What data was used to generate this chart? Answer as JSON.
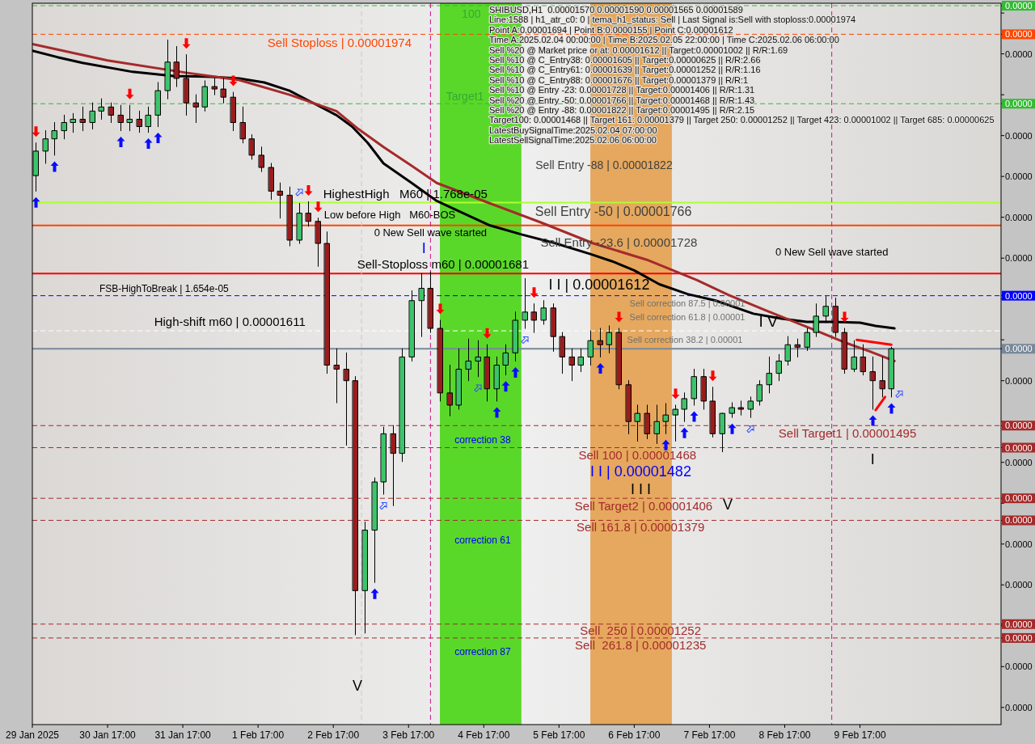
{
  "chart_data": {
    "type": "candlestick",
    "title": "SHIBUSD,H1  0.00001570 0.00001590 0.00001565 0.00001589",
    "x": [
      "2025-01-29T18:00",
      "2025-01-29T21:00",
      "2025-01-30T00:00",
      "2025-01-30T03:00",
      "2025-01-30T06:00",
      "2025-01-30T09:00",
      "2025-01-30T12:00",
      "2025-01-30T15:00",
      "2025-01-30T18:00",
      "2025-01-30T21:00",
      "2025-01-31T00:00",
      "2025-01-31T03:00",
      "2025-01-31T06:00",
      "2025-01-31T09:00",
      "2025-01-31T12:00",
      "2025-01-31T15:00",
      "2025-01-31T18:00",
      "2025-01-31T21:00",
      "2025-02-01T00:00",
      "2025-02-01T03:00",
      "2025-02-01T06:00",
      "2025-02-01T09:00",
      "2025-02-01T12:00",
      "2025-02-01T15:00",
      "2025-02-01T18:00",
      "2025-02-01T21:00",
      "2025-02-02T00:00",
      "2025-02-02T03:00",
      "2025-02-02T06:00",
      "2025-02-02T09:00",
      "2025-02-02T12:00",
      "2025-02-02T15:00",
      "2025-02-02T18:00",
      "2025-02-02T21:00",
      "2025-02-03T00:00",
      "2025-02-03T03:00",
      "2025-02-03T06:00",
      "2025-02-03T09:00",
      "2025-02-03T12:00",
      "2025-02-03T15:00",
      "2025-02-03T18:00",
      "2025-02-03T21:00",
      "2025-02-04T00:00",
      "2025-02-04T03:00",
      "2025-02-04T06:00",
      "2025-02-04T09:00",
      "2025-02-04T12:00",
      "2025-02-04T15:00",
      "2025-02-04T18:00",
      "2025-02-04T21:00",
      "2025-02-05T00:00",
      "2025-02-05T03:00",
      "2025-02-05T06:00",
      "2025-02-05T09:00",
      "2025-02-05T12:00",
      "2025-02-05T15:00",
      "2025-02-05T18:00",
      "2025-02-05T21:00",
      "2025-02-06T00:00",
      "2025-02-06T03:00",
      "2025-02-06T06:00",
      "2025-02-06T09:00",
      "2025-02-06T12:00",
      "2025-02-06T15:00",
      "2025-02-06T18:00",
      "2025-02-06T21:00",
      "2025-02-07T00:00",
      "2025-02-07T03:00",
      "2025-02-07T06:00",
      "2025-02-07T09:00",
      "2025-02-07T12:00",
      "2025-02-07T15:00",
      "2025-02-07T18:00",
      "2025-02-07T21:00",
      "2025-02-08T00:00",
      "2025-02-08T03:00",
      "2025-02-08T06:00",
      "2025-02-08T09:00",
      "2025-02-08T12:00",
      "2025-02-08T15:00",
      "2025-02-08T18:00",
      "2025-02-08T21:00",
      "2025-02-09T00:00",
      "2025-02-09T03:00",
      "2025-02-09T06:00",
      "2025-02-09T09:00",
      "2025-02-09T12:00",
      "2025-02-09T15:00",
      "2025-02-09T18:00",
      "2025-02-09T21:00",
      "2025-02-10T00:00",
      "2025-02-10T03:00"
    ],
    "ohlc": [
      [
        1.801e-05,
        1.841e-05,
        1.782e-05,
        1.831e-05
      ],
      [
        1.831e-05,
        1.856e-05,
        1.816e-05,
        1.846e-05
      ],
      [
        1.846e-05,
        1.866e-05,
        1.826e-05,
        1.856e-05
      ],
      [
        1.856e-05,
        1.875e-05,
        1.846e-05,
        1.866e-05
      ],
      [
        1.866e-05,
        1.877e-05,
        1.854e-05,
        1.87e-05
      ],
      [
        1.87e-05,
        1.885e-05,
        1.856e-05,
        1.866e-05
      ],
      [
        1.866e-05,
        1.89e-05,
        1.858e-05,
        1.88e-05
      ],
      [
        1.88e-05,
        1.895e-05,
        1.87e-05,
        1.885e-05
      ],
      [
        1.885e-05,
        1.89e-05,
        1.866e-05,
        1.875e-05
      ],
      [
        1.875e-05,
        1.887e-05,
        1.856e-05,
        1.866e-05
      ],
      [
        1.866e-05,
        1.887e-05,
        1.856e-05,
        1.87e-05
      ],
      [
        1.87e-05,
        1.88e-05,
        1.854e-05,
        1.861e-05
      ],
      [
        1.861e-05,
        1.885e-05,
        1.854e-05,
        1.875e-05
      ],
      [
        1.875e-05,
        1.915e-05,
        1.861e-05,
        1.905e-05
      ],
      [
        1.905e-05,
        1.967e-05,
        1.895e-05,
        1.94e-05
      ],
      [
        1.94e-05,
        1.959e-05,
        1.91e-05,
        1.92e-05
      ],
      [
        1.92e-05,
        1.949e-05,
        1.875e-05,
        1.89e-05
      ],
      [
        1.89e-05,
        1.9e-05,
        1.866e-05,
        1.885e-05
      ],
      [
        1.885e-05,
        1.917e-05,
        1.88e-05,
        1.91e-05
      ],
      [
        1.91e-05,
        1.92e-05,
        1.9e-05,
        1.907e-05
      ],
      [
        1.907e-05,
        1.92e-05,
        1.89e-05,
        1.897e-05
      ],
      [
        1.897e-05,
        1.903e-05,
        1.856e-05,
        1.866e-05
      ],
      [
        1.866e-05,
        1.885e-05,
        1.841e-05,
        1.846e-05
      ],
      [
        1.846e-05,
        1.851e-05,
        1.821e-05,
        1.826e-05
      ],
      [
        1.826e-05,
        1.836e-05,
        1.806e-05,
        1.811e-05
      ],
      [
        1.811e-05,
        1.816e-05,
        1.772e-05,
        1.782e-05
      ],
      [
        1.782e-05,
        1.792e-05,
        1.749e-05,
        1.777e-05
      ],
      [
        1.777e-05,
        1.787e-05,
        1.715e-05,
        1.722e-05
      ],
      [
        1.722e-05,
        1.767e-05,
        1.718e-05,
        1.755e-05
      ],
      [
        1.755e-05,
        1.769e-05,
        1.739e-05,
        1.745e-05
      ],
      [
        1.745e-05,
        1.749e-05,
        1.69e-05,
        1.718e-05
      ],
      [
        1.718e-05,
        1.732e-05,
        1.559e-05,
        1.569e-05
      ],
      [
        1.569e-05,
        1.589e-05,
        1.523e-05,
        1.564e-05
      ],
      [
        1.564e-05,
        1.584e-05,
        1.471e-05,
        1.55e-05
      ],
      [
        1.55e-05,
        1.555e-05,
        1.239e-05,
        1.293e-05
      ],
      [
        1.293e-05,
        1.377e-05,
        1.241e-05,
        1.367e-05
      ],
      [
        1.367e-05,
        1.431e-05,
        1.303e-05,
        1.426e-05
      ],
      [
        1.426e-05,
        1.493e-05,
        1.411e-05,
        1.485e-05
      ],
      [
        1.485e-05,
        1.495e-05,
        1.397e-05,
        1.461e-05
      ],
      [
        1.461e-05,
        1.589e-05,
        1.451e-05,
        1.579e-05
      ],
      [
        1.579e-05,
        1.66e-05,
        1.574e-05,
        1.648e-05
      ],
      [
        1.648e-05,
        1.681e-05,
        1.604e-05,
        1.663e-05
      ],
      [
        1.663e-05,
        1.683e-05,
        1.609e-05,
        1.614e-05
      ],
      [
        1.614e-05,
        1.624e-05,
        1.525e-05,
        1.535e-05
      ],
      [
        1.535e-05,
        1.569e-05,
        1.507e-05,
        1.52e-05
      ],
      [
        1.52e-05,
        1.589e-05,
        1.515e-05,
        1.564e-05
      ],
      [
        1.564e-05,
        1.601e-05,
        1.55e-05,
        1.574e-05
      ],
      [
        1.574e-05,
        1.599e-05,
        1.555e-05,
        1.579e-05
      ],
      [
        1.579e-05,
        1.594e-05,
        1.525e-05,
        1.54e-05
      ],
      [
        1.54e-05,
        1.579e-05,
        1.525e-05,
        1.569e-05
      ],
      [
        1.569e-05,
        1.594e-05,
        1.557e-05,
        1.584e-05
      ],
      [
        1.584e-05,
        1.634e-05,
        1.574e-05,
        1.624e-05
      ],
      [
        1.624e-05,
        1.675e-05,
        1.614e-05,
        1.634e-05
      ],
      [
        1.634e-05,
        1.644e-05,
        1.609e-05,
        1.624e-05
      ],
      [
        1.624e-05,
        1.648e-05,
        1.619e-05,
        1.639e-05
      ],
      [
        1.639e-05,
        1.644e-05,
        1.586e-05,
        1.604e-05
      ],
      [
        1.604e-05,
        1.609e-05,
        1.559e-05,
        1.579e-05
      ],
      [
        1.579e-05,
        1.589e-05,
        1.55e-05,
        1.569e-05
      ],
      [
        1.569e-05,
        1.589e-05,
        1.561e-05,
        1.579e-05
      ],
      [
        1.579e-05,
        1.611e-05,
        1.569e-05,
        1.599e-05
      ],
      [
        1.599e-05,
        1.614e-05,
        1.579e-05,
        1.594e-05
      ],
      [
        1.594e-05,
        1.617e-05,
        1.584e-05,
        1.609e-05
      ],
      [
        1.609e-05,
        1.614e-05,
        1.54e-05,
        1.545e-05
      ],
      [
        1.545e-05,
        1.55e-05,
        1.485e-05,
        1.5e-05
      ],
      [
        1.5e-05,
        1.52e-05,
        1.476e-05,
        1.51e-05
      ],
      [
        1.51e-05,
        1.52e-05,
        1.479e-05,
        1.485e-05
      ],
      [
        1.485e-05,
        1.52e-05,
        1.473e-05,
        1.5e-05
      ],
      [
        1.5e-05,
        1.522e-05,
        1.485e-05,
        1.508e-05
      ],
      [
        1.508e-05,
        1.52e-05,
        1.476e-05,
        1.515e-05
      ],
      [
        1.515e-05,
        1.535e-05,
        1.5e-05,
        1.528e-05
      ],
      [
        1.528e-05,
        1.564e-05,
        1.52e-05,
        1.555e-05
      ],
      [
        1.555e-05,
        1.564e-05,
        1.515e-05,
        1.525e-05
      ],
      [
        1.525e-05,
        1.542e-05,
        1.481e-05,
        1.485e-05
      ],
      [
        1.485e-05,
        1.51e-05,
        1.463e-05,
        1.51e-05
      ],
      [
        1.51e-05,
        1.523e-05,
        1.505e-05,
        1.517e-05
      ],
      [
        1.517e-05,
        1.525e-05,
        1.508e-05,
        1.515e-05
      ],
      [
        1.515e-05,
        1.53e-05,
        1.505e-05,
        1.525e-05
      ],
      [
        1.525e-05,
        1.55e-05,
        1.52e-05,
        1.545e-05
      ],
      [
        1.545e-05,
        1.579e-05,
        1.535e-05,
        1.559e-05
      ],
      [
        1.559e-05,
        1.582e-05,
        1.55e-05,
        1.574e-05
      ],
      [
        1.574e-05,
        1.604e-05,
        1.569e-05,
        1.594e-05
      ],
      [
        1.594e-05,
        1.601e-05,
        1.579e-05,
        1.591e-05
      ],
      [
        1.591e-05,
        1.614e-05,
        1.587e-05,
        1.609e-05
      ],
      [
        1.609e-05,
        1.644e-05,
        1.604e-05,
        1.629e-05
      ],
      [
        1.629e-05,
        1.653e-05,
        1.621e-05,
        1.641e-05
      ],
      [
        1.641e-05,
        1.651e-05,
        1.604e-05,
        1.609e-05
      ],
      [
        1.609e-05,
        1.614e-05,
        1.559e-05,
        1.564e-05
      ],
      [
        1.564e-05,
        1.599e-05,
        1.561e-05,
        1.579e-05
      ],
      [
        1.579e-05,
        1.594e-05,
        1.557e-05,
        1.561e-05
      ],
      [
        1.561e-05,
        1.579e-05,
        1.515e-05,
        1.55e-05
      ],
      [
        1.55e-05,
        1.579e-05,
        1.53e-05,
        1.54e-05
      ],
      [
        1.54e-05,
        1.591e-05,
        1.53e-05,
        1.589e-05
      ]
    ],
    "series": [
      {
        "type": "line",
        "color": "#000000",
        "x": [
          "2025-01-29T17:00",
          "2025-01-30T01:00",
          "2025-01-30T09:00",
          "2025-01-31T01:00",
          "2025-01-31T14:00",
          "2025-02-01T02:00",
          "2025-02-01T11:00",
          "2025-02-01T19:00",
          "2025-02-02T03:00",
          "2025-02-02T12:00",
          "2025-02-02T18:00",
          "2025-02-02T23:00",
          "2025-02-03T04:00",
          "2025-02-03T09:00",
          "2025-02-03T18:00",
          "2025-02-04T02:00",
          "2025-02-04T11:00",
          "2025-02-04T19:00",
          "2025-02-05T05:00",
          "2025-02-05T16:00",
          "2025-02-06T03:00",
          "2025-02-06T10:00",
          "2025-02-06T17:00",
          "2025-02-07T01:00",
          "2025-02-07T10:00",
          "2025-02-07T19:00",
          "2025-02-08T07:00",
          "2025-02-08T16:00",
          "2025-02-09T00:00",
          "2025-02-09T08:00",
          "2025-02-09T17:00",
          "2025-02-09T22:00",
          "2025-02-10T04:00"
        ],
        "values": [
          1.954e-05,
          1.946e-05,
          1.939e-05,
          1.928e-05,
          1.923e-05,
          1.922e-05,
          1.92e-05,
          1.915e-05,
          1.905e-05,
          1.887e-05,
          1.875e-05,
          1.861e-05,
          1.841e-05,
          1.816e-05,
          1.792e-05,
          1.77e-05,
          1.754e-05,
          1.74e-05,
          1.729e-05,
          1.718e-05,
          1.705e-05,
          1.696e-05,
          1.685e-05,
          1.668e-05,
          1.656e-05,
          1.648e-05,
          1.632e-05,
          1.626e-05,
          1.622e-05,
          1.622e-05,
          1.621e-05,
          1.617e-05,
          1.614e-05
        ]
      },
      {
        "type": "line",
        "color": "#a52a2a",
        "x": [
          "2025-01-29T17:00",
          "2025-01-30T17:00",
          "2025-01-31T18:00",
          "2025-02-01T11:00",
          "2025-02-02T03:00",
          "2025-02-02T18:00",
          "2025-02-03T01:00",
          "2025-02-03T09:00",
          "2025-02-03T18:00",
          "2025-02-04T02:00",
          "2025-02-04T19:00",
          "2025-02-05T11:00",
          "2025-02-06T04:00",
          "2025-02-06T21:00",
          "2025-02-07T13:00",
          "2025-02-07T23:00",
          "2025-02-08T11:00",
          "2025-02-09T00:00",
          "2025-02-09T12:00",
          "2025-02-09T20:00",
          "2025-02-10T04:00"
        ],
        "values": [
          1.962e-05,
          1.942e-05,
          1.927e-05,
          1.918e-05,
          1.9e-05,
          1.88e-05,
          1.858e-05,
          1.836e-05,
          1.813e-05,
          1.792e-05,
          1.767e-05,
          1.744e-05,
          1.718e-05,
          1.698e-05,
          1.673e-05,
          1.655e-05,
          1.636e-05,
          1.616e-05,
          1.597e-05,
          1.586e-05,
          1.574e-05
        ]
      },
      {
        "type": "line",
        "color": "#ff0000",
        "x": [
          "2025-02-09T16:00",
          "2025-02-10T03:00"
        ],
        "values": [
          1.6e-05,
          1.594e-05
        ]
      },
      {
        "type": "line",
        "color": "#ff0000",
        "x": [
          "2025-02-09T22:00",
          "2025-02-10T01:00"
        ],
        "values": [
          1.514e-05,
          1.53e-05
        ]
      }
    ],
    "xlim": [
      "2025-01-29T17:00",
      "2025-02-11T14:00"
    ],
    "xticks": [
      {
        "value": "2025-01-29T17:00",
        "label": "29 Jan 2025"
      },
      {
        "value": "2025-01-30T17:00",
        "label": "30 Jan 17:00"
      },
      {
        "value": "2025-01-31T17:00",
        "label": "31 Jan 17:00"
      },
      {
        "value": "2025-02-01T17:00",
        "label": "1 Feb 17:00"
      },
      {
        "value": "2025-02-02T17:00",
        "label": "2 Feb 17:00"
      },
      {
        "value": "2025-02-03T17:00",
        "label": "3 Feb 17:00"
      },
      {
        "value": "2025-02-04T17:00",
        "label": "4 Feb 17:00"
      },
      {
        "value": "2025-02-05T17:00",
        "label": "5 Feb 17:00"
      },
      {
        "value": "2025-02-06T17:00",
        "label": "6 Feb 17:00"
      },
      {
        "value": "2025-02-07T17:00",
        "label": "7 Feb 17:00"
      },
      {
        "value": "2025-02-08T17:00",
        "label": "8 Feb 17:00"
      },
      {
        "value": "2025-02-09T17:00",
        "label": "9 Feb 17:00"
      }
    ],
    "ylim": [
      1.129e-05,
      2.012e-05
    ],
    "yticks": [
      {
        "value": 1.15e-05,
        "label": "0.0000"
      },
      {
        "value": 1.2e-05,
        "label": "0.0000"
      },
      {
        "value": 1.25e-05,
        "label": null
      },
      {
        "value": 1.3e-05,
        "label": "0.0000"
      },
      {
        "value": 1.35e-05,
        "label": "0.0000"
      },
      {
        "value": 1.4e-05,
        "label": null
      },
      {
        "value": 1.45e-05,
        "label": "0.0000"
      },
      {
        "value": 1.5e-05,
        "label": null
      },
      {
        "value": 1.55e-05,
        "label": "0.0000"
      },
      {
        "value": 1.6e-05,
        "label": null
      },
      {
        "value": 1.65e-05,
        "label": null
      },
      {
        "value": 1.7e-05,
        "label": "0.0000"
      },
      {
        "value": 1.75e-05,
        "label": "0.0000"
      },
      {
        "value": 1.8e-05,
        "label": "0.0000"
      },
      {
        "value": 1.85e-05,
        "label": "0.0000"
      },
      {
        "value": 1.9e-05,
        "label": null
      },
      {
        "value": 1.95e-05,
        "label": "0.0000"
      },
      {
        "value": 2e-05,
        "label": null
      },
      {
        "value": 2.009e-05,
        "label": "0.0000"
      },
      {
        "value": 1.974e-05,
        "label": "0.0000"
      },
      {
        "value": 1.889e-05,
        "label": "0.0000"
      },
      {
        "value": 1.654e-05,
        "label": "0.0000"
      },
      {
        "value": 1.589e-05,
        "label": "0.0000"
      },
      {
        "value": 1.495e-05,
        "label": "0.0000"
      },
      {
        "value": 1.468e-05,
        "label": "0.0000"
      },
      {
        "value": 1.406e-05,
        "label": "0.0000"
      },
      {
        "value": 1.379e-05,
        "label": "0.0000"
      },
      {
        "value": 1.252e-05,
        "label": "0.0000"
      },
      {
        "value": 1.235e-05,
        "label": "0.0000"
      }
    ],
    "bands": [
      {
        "axis": "x",
        "from": "2025-02-04T03:00",
        "to": "2025-02-05T05:00",
        "color": "#5ad82a"
      },
      {
        "axis": "x",
        "from": "2025-02-06T03:00",
        "to": "2025-02-07T05:00",
        "color": "#e5a85e"
      }
    ],
    "ref_lines": [
      {
        "axis": "y",
        "value": 2.009e-05,
        "color": "#33bb33",
        "line_style": "dashed"
      },
      {
        "axis": "y",
        "value": 1.974e-05,
        "color": "#ff4500",
        "line_style": "dashed"
      },
      {
        "axis": "y",
        "value": 1.889e-05,
        "color": "#33bb33",
        "line_style": "dashed"
      },
      {
        "axis": "y",
        "value": 1.768e-05,
        "color": "#adff2f",
        "line_style": "solid"
      },
      {
        "axis": "y",
        "value": 1.74e-05,
        "color": "#ff4500",
        "line_style": "solid"
      },
      {
        "axis": "y",
        "value": 1.681e-05,
        "color": "#ff0000",
        "line_style": "solid"
      },
      {
        "axis": "y",
        "value": 1.654e-05,
        "color": "#0000ff",
        "line_style": "dashed"
      },
      {
        "axis": "y",
        "value": 1.611e-05,
        "color": "#ffffff",
        "line_style": "dashed"
      },
      {
        "axis": "y",
        "value": 1.589e-05,
        "color": "#778899",
        "line_style": "solid"
      },
      {
        "axis": "y",
        "value": 1.495e-05,
        "color": "#a52a2a",
        "line_style": "dashed"
      },
      {
        "axis": "y",
        "value": 1.468e-05,
        "color": "#a52a2a",
        "line_style": "dashed"
      },
      {
        "axis": "y",
        "value": 1.406e-05,
        "color": "#a52a2a",
        "line_style": "dashed"
      },
      {
        "axis": "y",
        "value": 1.379e-05,
        "color": "#a52a2a",
        "line_style": "dashed"
      },
      {
        "axis": "y",
        "value": 1.252e-05,
        "color": "#a52a2a",
        "line_style": "dashed"
      },
      {
        "axis": "y",
        "value": 1.235e-05,
        "color": "#a52a2a",
        "line_style": "dashed"
      },
      {
        "axis": "x",
        "value": "2025-02-03T02:00",
        "color": "#c8c8c8",
        "line_style": "dashed"
      },
      {
        "axis": "x",
        "value": "2025-02-04T00:00",
        "color": "#c71585",
        "line_style": "dashed"
      },
      {
        "axis": "x",
        "value": "2025-02-09T08:00",
        "color": "#c71585",
        "line_style": "dashed"
      }
    ],
    "annotations": [
      "Line:1588 | h1_atr_c0: 0 | tema_h1_status: Sell | Last Signal is:Sell with stoploss:0.00001974",
      "Point A:0.00001694 | Point B:0.0000155 | Point C:0.00001612",
      "Time A:2025.02.04 00:00:00 | Time B:2025.02.05 22:00:00 | Time C:2025.02.06 06:00:00",
      "Sell %20 @ Market price or at: 0.00001612 || Target:0.00001002 || R/R:1.69",
      "Sell %10 @ C_Entry38: 0.00001605 || Target:0.00000625 || R/R:2.66",
      "Sell %10 @ C_Entry61: 0.00001639 || Target:0.00001252 || R/R:1.16",
      "Sell %10 @ C_Entry88: 0.00001676 || Target:0.00001379 || R/R:1",
      "Sell %10 @ Entry -23: 0.00001728 || Target:0.00001406 || R/R:1.31",
      "Sell %20 @ Entry -50: 0.00001766 || Target:0.00001468 || R/R:1.43",
      "Sell %20 @ Entry -88: 0.00001822 || Target:0.00001495 || R/R:2.15",
      "Target100: 0.00001468 || Target 161: 0.00001379 || Target 250: 0.00001252 || Target 423: 0.00001002 || Target 685: 0.00000625",
      "LatestBuySignalTime:2025.02.04 07:00:00",
      "LatestSellSignalTime:2025.02.06 06:00:00",
      "Sell Entry -88 | 0.00001822",
      "Sell Entry -50 | 0.00001766",
      "Sell Entry -23.6 | 0.00001728",
      "Sell correction 87.5 | 0.00001",
      "I I | 0.00001612",
      "Sell correction 61.8 | 0.00001",
      "Sell correction 38.2 | 0.00001",
      "I V",
      "I",
      "correction 38",
      "correction 61",
      "correction 87",
      "I I | 0.00001482",
      "I I I",
      "V",
      "V",
      "I",
      {
        "text": "100",
        "x": "2025-02-04T13:00",
        "y": 2.009e-05
      },
      {
        "text": "Target1",
        "x": "2025-02-04T11:00",
        "y": 1.889e-05
      },
      {
        "text": "Sell Stoploss | 0.00001974",
        "x": "2025-02-02T19:00",
        "y": 1.974e-05
      },
      {
        "text": "0 New Sell wave started",
        "x": "2025-02-09T08:00",
        "y": 1.708e-05
      },
      {
        "text": "0 New Sell wave started",
        "x": "2025-02-04T00:00",
        "y": 1.731e-05
      },
      {
        "text": "HighestHigh   M60 | 1.768e-05",
        "x": "2025-02-03T16:00",
        "y": 1.768e-05
      },
      {
        "text": "Low before High   M60-BOS",
        "x": "2025-02-03T11:00",
        "y": 1.74e-05
      },
      {
        "text": "Sell-Stoploss m60 | 0.00001681",
        "x": "2025-02-04T04:00",
        "y": 1.681e-05
      },
      {
        "text": "FSB-HighToBreak | 1.654e-05",
        "x": "2025-01-31T11:00",
        "y": 1.654e-05
      },
      {
        "text": "High-shift m60 | 0.00001611",
        "x": "2025-02-01T08:00",
        "y": 1.611e-05
      },
      {
        "text": "Sell Target1 | 0.00001495",
        "x": "2025-02-09T13:00",
        "y": 1.495e-05
      },
      {
        "text": "Sell 100 | 0.00001468",
        "x": "2025-02-06T18:00",
        "y": 1.468e-05
      },
      {
        "text": "Sell Target2 | 0.00001406",
        "x": "2025-02-06T20:00",
        "y": 1.406e-05
      },
      {
        "text": "Sell 161.8 | 0.00001379",
        "x": "2025-02-06T19:00",
        "y": 1.379e-05
      },
      {
        "text": "Sell  250 | 0.00001252",
        "x": "2025-02-06T19:00",
        "y": 1.252e-05
      },
      {
        "text": "Sell  261.8 | 0.00001235",
        "x": "2025-02-06T19:00",
        "y": 1.235e-05
      }
    ]
  }
}
